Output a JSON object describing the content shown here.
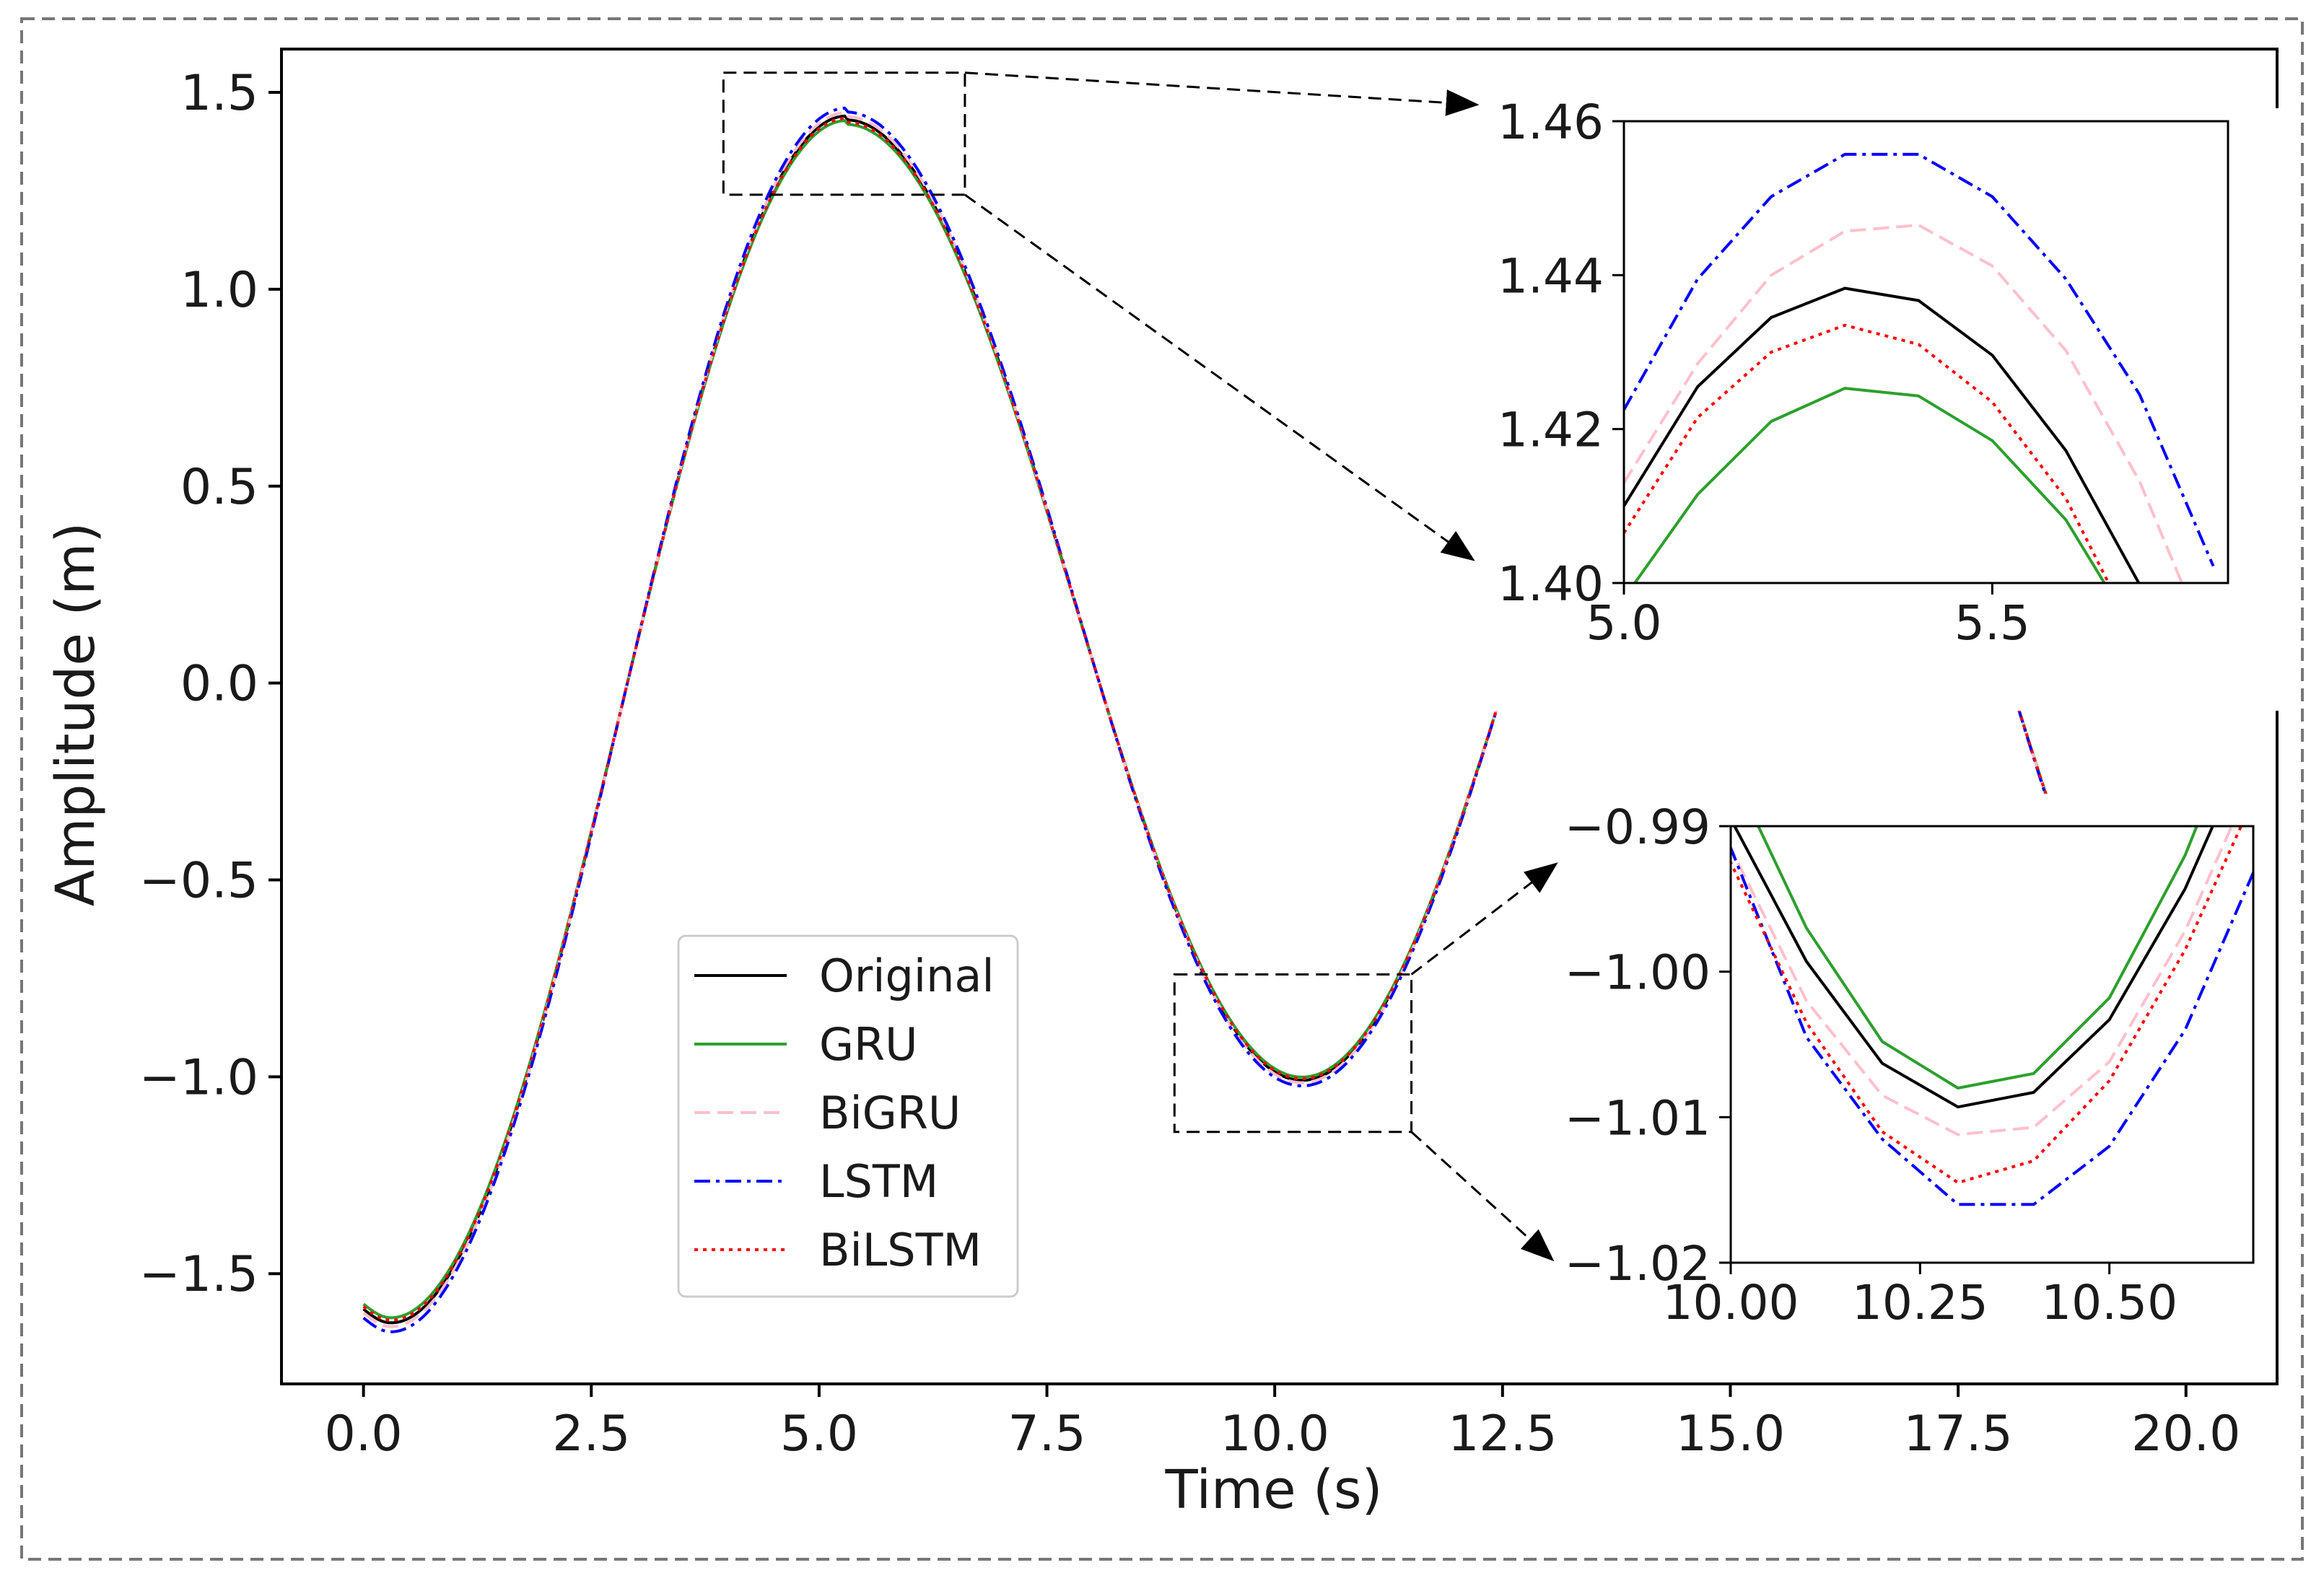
{
  "chart_data": [
    {
      "id": "main",
      "type": "line",
      "title": "",
      "xlabel": "Time (s)",
      "ylabel": "Amplitude (m)",
      "xlim": [
        -0.9,
        21.0
      ],
      "ylim": [
        -1.78,
        1.61
      ],
      "xticks": [
        0.0,
        2.5,
        5.0,
        7.5,
        10.0,
        12.5,
        15.0,
        17.5,
        20.0
      ],
      "xtick_labels": [
        "0.0",
        "2.5",
        "5.0",
        "7.5",
        "10.0",
        "12.5",
        "15.0",
        "17.5",
        "20.0"
      ],
      "yticks": [
        -1.5,
        -1.0,
        -0.5,
        0.0,
        0.5,
        1.0,
        1.5
      ],
      "ytick_labels": [
        "−1.5",
        "−1.0",
        "−0.5",
        "0.0",
        "0.5",
        "1.0",
        "1.5"
      ],
      "grid": false,
      "legend_location": "lower-center",
      "series": [
        {
          "name": "Original",
          "color": "#000000",
          "dash": "solid",
          "offset": 0.0
        },
        {
          "name": "GRU",
          "color": "#2ca02c",
          "dash": "solid",
          "offset": -0.008
        },
        {
          "name": "BiGRU",
          "color": "#ffc0cb",
          "dash": "dashed",
          "offset": 0.006
        },
        {
          "name": "LSTM",
          "color": "#0000ff",
          "dash": "dashdot",
          "offset": 0.014
        },
        {
          "name": "BiLSTM",
          "color": "#ff0000",
          "dash": "dotted",
          "offset": -0.004
        }
      ],
      "visible_x_range": [
        0.0,
        20.6
      ],
      "zoom_boxes": [
        {
          "x": [
            3.95,
            6.6
          ],
          "y": [
            1.24,
            1.55
          ]
        },
        {
          "x": [
            8.9,
            11.5
          ],
          "y": [
            -1.14,
            -0.74
          ]
        }
      ]
    },
    {
      "id": "inset-peak",
      "type": "line",
      "xlim": [
        5.0,
        5.82
      ],
      "ylim": [
        1.4,
        1.46
      ],
      "xticks": [
        5.0,
        5.5
      ],
      "xtick_labels": [
        "5.0",
        "5.5"
      ],
      "yticks": [
        1.4,
        1.42,
        1.44,
        1.46
      ],
      "ytick_labels": [
        "1.40",
        "1.42",
        "1.44",
        "1.46"
      ],
      "x": [
        5.0,
        5.1,
        5.2,
        5.3,
        5.4,
        5.5,
        5.6,
        5.7,
        5.8
      ],
      "series": [
        {
          "name": "Original",
          "color": "#000000",
          "dash": "solid",
          "values": [
            1.41,
            1.4255,
            1.4345,
            1.4383,
            1.4367,
            1.4296,
            1.4172,
            1.3998,
            1.3772
          ]
        },
        {
          "name": "GRU",
          "color": "#2ca02c",
          "dash": "solid",
          "values": [
            1.398,
            1.4115,
            1.421,
            1.4253,
            1.4243,
            1.4185,
            1.4082,
            1.3925,
            1.372
          ]
        },
        {
          "name": "BiGRU",
          "color": "#ffc0cb",
          "dash": "dashed",
          "values": [
            1.413,
            1.4285,
            1.44,
            1.4457,
            1.4465,
            1.4412,
            1.4302,
            1.4132,
            1.3902
          ]
        },
        {
          "name": "LSTM",
          "color": "#0000ff",
          "dash": "dashdot",
          "values": [
            1.4225,
            1.4395,
            1.4502,
            1.4557,
            1.4557,
            1.4502,
            1.4395,
            1.4245,
            1.4022
          ]
        },
        {
          "name": "BiLSTM",
          "color": "#ff0000",
          "dash": "dotted",
          "values": [
            1.4065,
            1.4215,
            1.43,
            1.4335,
            1.431,
            1.4235,
            1.411,
            1.392,
            1.3702
          ]
        }
      ]
    },
    {
      "id": "inset-trough",
      "type": "line",
      "xlim": [
        10.0,
        10.69
      ],
      "ylim": [
        -1.02,
        -0.99
      ],
      "xticks": [
        10.0,
        10.25,
        10.5
      ],
      "xtick_labels": [
        "10.00",
        "10.25",
        "10.50"
      ],
      "yticks": [
        -1.02,
        -1.01,
        -1.0,
        -0.99
      ],
      "ytick_labels": [
        "−1.02",
        "−1.01",
        "−1.00",
        "−0.99"
      ],
      "x": [
        9.9,
        10.0,
        10.1,
        10.2,
        10.3,
        10.4,
        10.5,
        10.6,
        10.7
      ],
      "series": [
        {
          "name": "Original",
          "color": "#000000",
          "dash": "solid",
          "values": [
            -0.981,
            -0.9895,
            -0.9993,
            -1.0063,
            -1.0093,
            -1.0083,
            -1.0033,
            -0.9943,
            -0.9825
          ]
        },
        {
          "name": "GRU",
          "color": "#2ca02c",
          "dash": "solid",
          "values": [
            -0.974,
            -0.986,
            -0.997,
            -1.0048,
            -1.008,
            -1.007,
            -1.0018,
            -0.992,
            -0.979
          ]
        },
        {
          "name": "BiGRU",
          "color": "#ffc0cb",
          "dash": "dashed",
          "values": [
            -0.983,
            -0.9915,
            -1.002,
            -1.0085,
            -1.0112,
            -1.0107,
            -1.0062,
            -0.9972,
            -0.9855
          ]
        },
        {
          "name": "LSTM",
          "color": "#0000ff",
          "dash": "dashdot",
          "values": [
            -0.982,
            -0.9915,
            -1.0045,
            -1.0115,
            -1.016,
            -1.016,
            -1.012,
            -1.004,
            -0.992
          ]
        },
        {
          "name": "BiLSTM",
          "color": "#ff0000",
          "dash": "dotted",
          "values": [
            -0.983,
            -0.9925,
            -1.0035,
            -1.011,
            -1.0145,
            -1.013,
            -1.0075,
            -0.9985,
            -0.987
          ]
        }
      ]
    }
  ]
}
